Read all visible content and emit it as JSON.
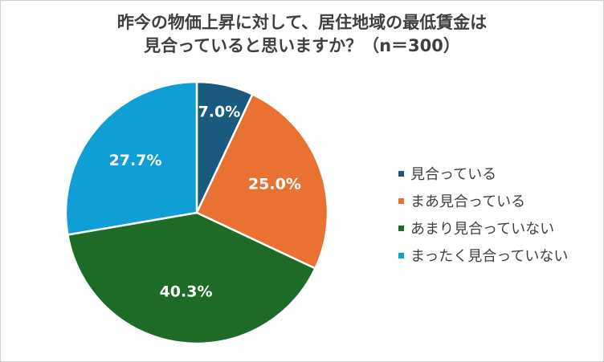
{
  "chart_data": {
    "type": "pie",
    "title_line1": "昨今の物価上昇に対して、居住地域の最低賃金は",
    "title_line2": "見合っていると思いますか？（n＝300）",
    "slices": [
      {
        "label": "見合っている",
        "value": 7.0,
        "display": "7.0%",
        "color": "#1a5a7e"
      },
      {
        "label": "まあ見合っている",
        "value": 25.0,
        "display": "25.0%",
        "color": "#e97132"
      },
      {
        "label": "あまり見合っていない",
        "value": 40.3,
        "display": "40.3%",
        "color": "#1e6b27"
      },
      {
        "label": "まったく見合っていない",
        "value": 27.7,
        "display": "27.7%",
        "color": "#0f9ed5"
      }
    ],
    "legend_position": "right",
    "start_angle": "top",
    "direction": "clockwise"
  }
}
